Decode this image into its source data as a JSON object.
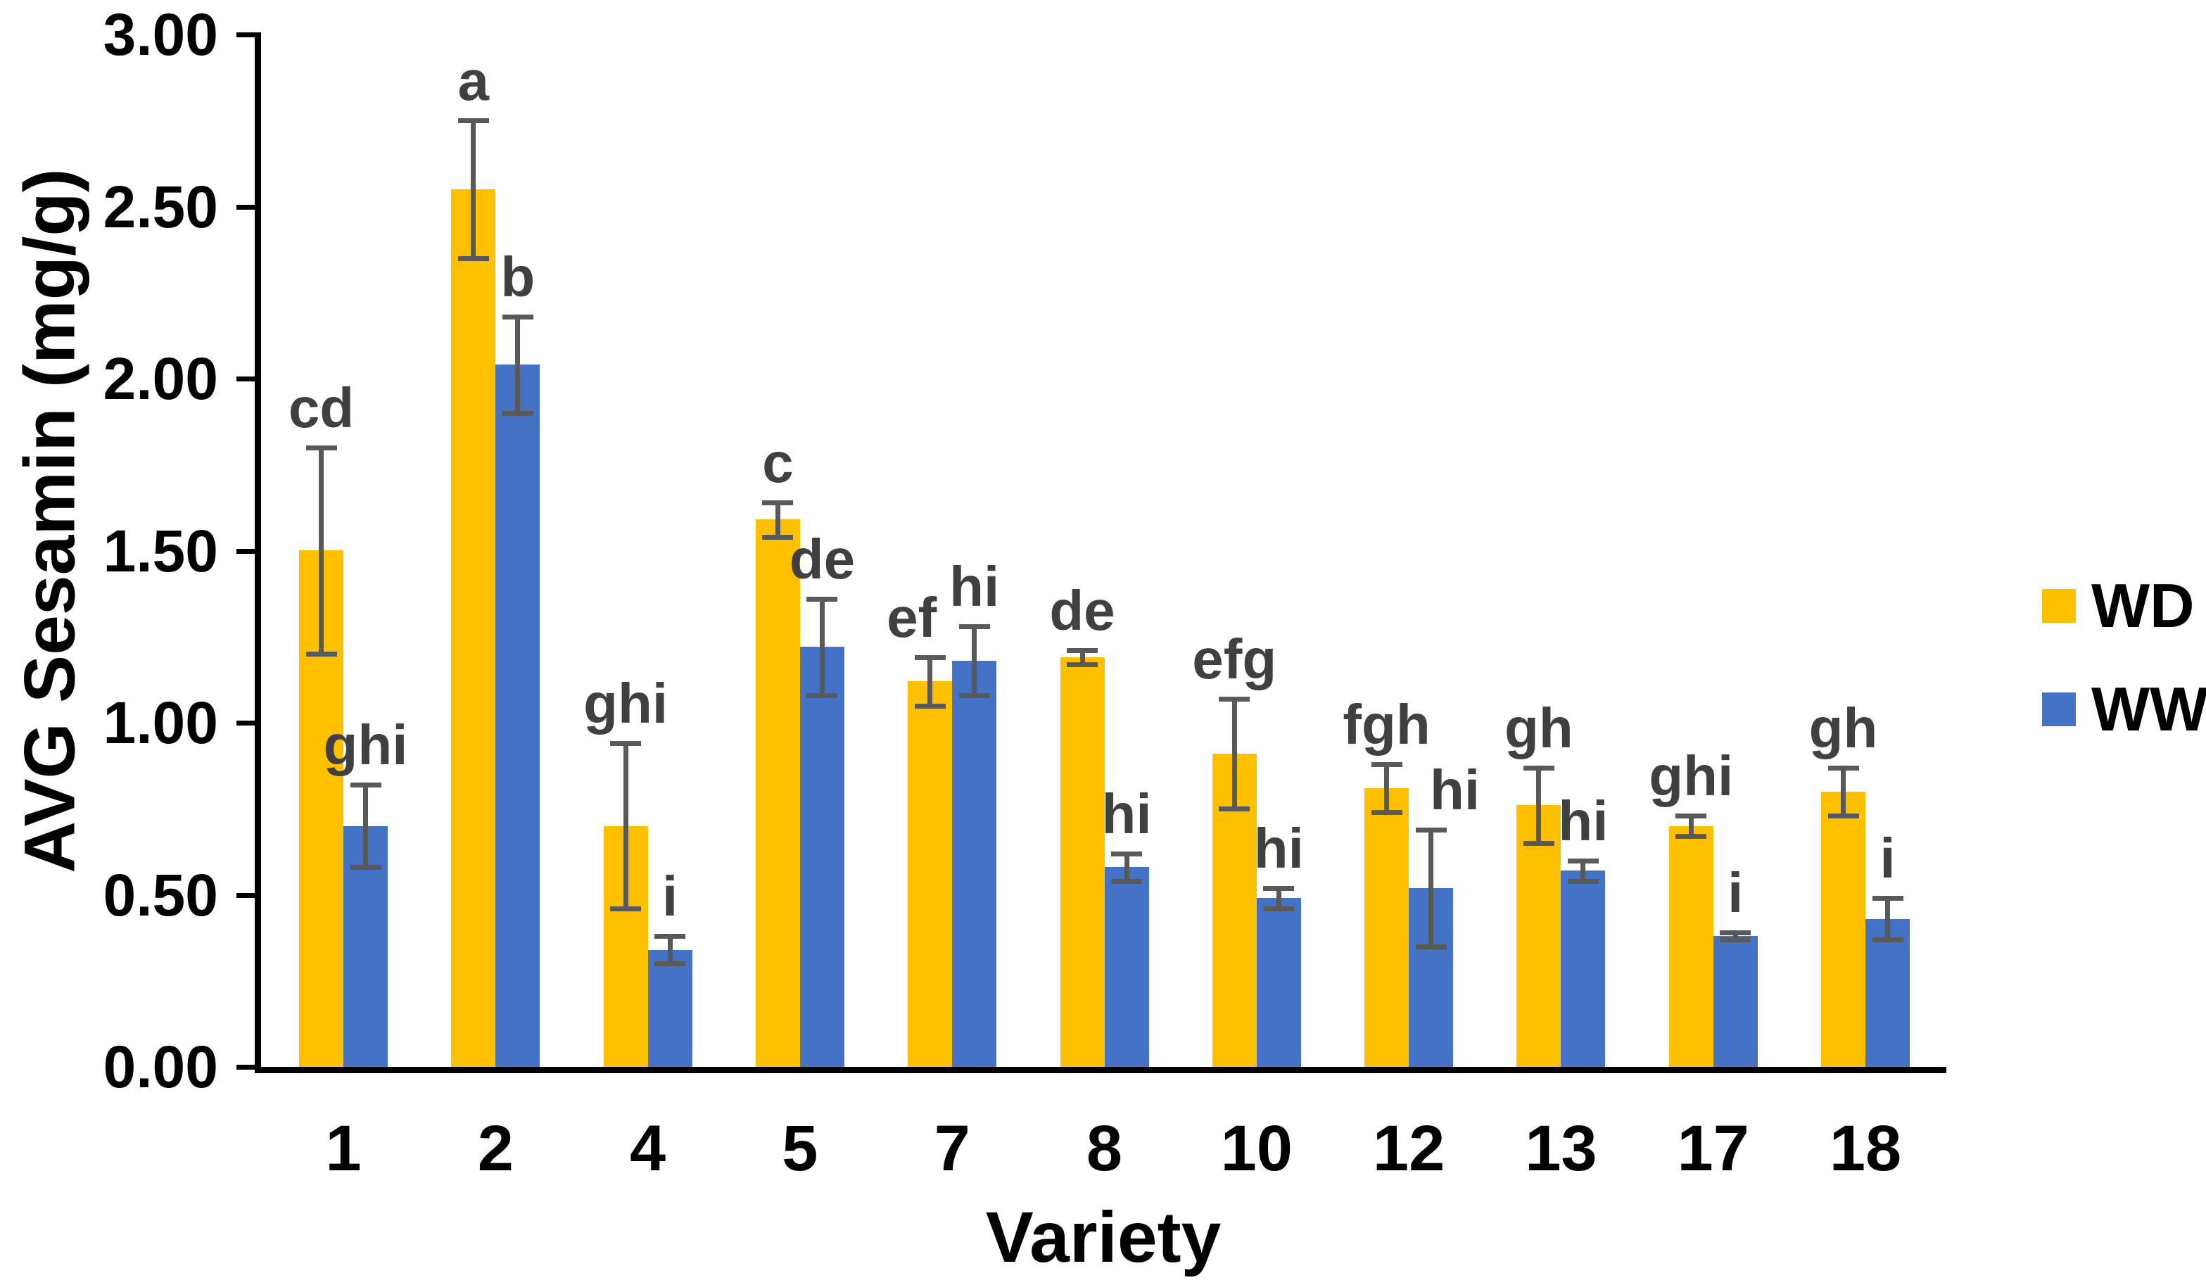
{
  "chart_data": {
    "type": "bar",
    "title": "",
    "xlabel": "Variety",
    "ylabel": "AVG Sesamin (mg/g)",
    "categories": [
      "1",
      "2",
      "4",
      "5",
      "7",
      "8",
      "10",
      "12",
      "13",
      "17",
      "18"
    ],
    "y_axis": {
      "min": 0.0,
      "max": 3.0,
      "tick_step": 0.5,
      "tick_labels": [
        "3.00",
        "2.50",
        "2.00",
        "1.50",
        "1.00",
        "0.50",
        "0.00"
      ]
    },
    "grid": "off",
    "legend_position": "right",
    "legend": {
      "entries": [
        {
          "label": "WD",
          "color": "#FFC000"
        },
        {
          "label": "WW",
          "color": "#4472C4"
        }
      ]
    },
    "series": [
      {
        "name": "WD",
        "color": "#FFC000",
        "values": [
          1.5,
          2.55,
          0.7,
          1.59,
          1.12,
          1.19,
          0.91,
          0.81,
          0.76,
          0.7,
          0.8
        ],
        "errors": [
          0.3,
          0.2,
          0.24,
          0.05,
          0.07,
          0.02,
          0.16,
          0.07,
          0.11,
          0.03,
          0.07
        ],
        "sig_letters": [
          "cd",
          "a",
          "ghi",
          "c",
          "ef",
          "de",
          "efg",
          "fgh",
          "gh",
          "ghi",
          "gh"
        ]
      },
      {
        "name": "WW",
        "color": "#4472C4",
        "values": [
          0.7,
          2.04,
          0.34,
          1.22,
          1.18,
          0.58,
          0.49,
          0.52,
          0.57,
          0.38,
          0.43
        ],
        "errors": [
          0.12,
          0.14,
          0.04,
          0.14,
          0.1,
          0.04,
          0.03,
          0.17,
          0.03,
          0.01,
          0.06
        ],
        "sig_letters": [
          "ghi",
          "b",
          "i",
          "de",
          "hi",
          "hi",
          "hi",
          "hi",
          "hi",
          "i",
          "i"
        ]
      }
    ],
    "error_bar_color": "#595959",
    "sig_letter_color": "#404040",
    "axis_color": "#000000"
  }
}
